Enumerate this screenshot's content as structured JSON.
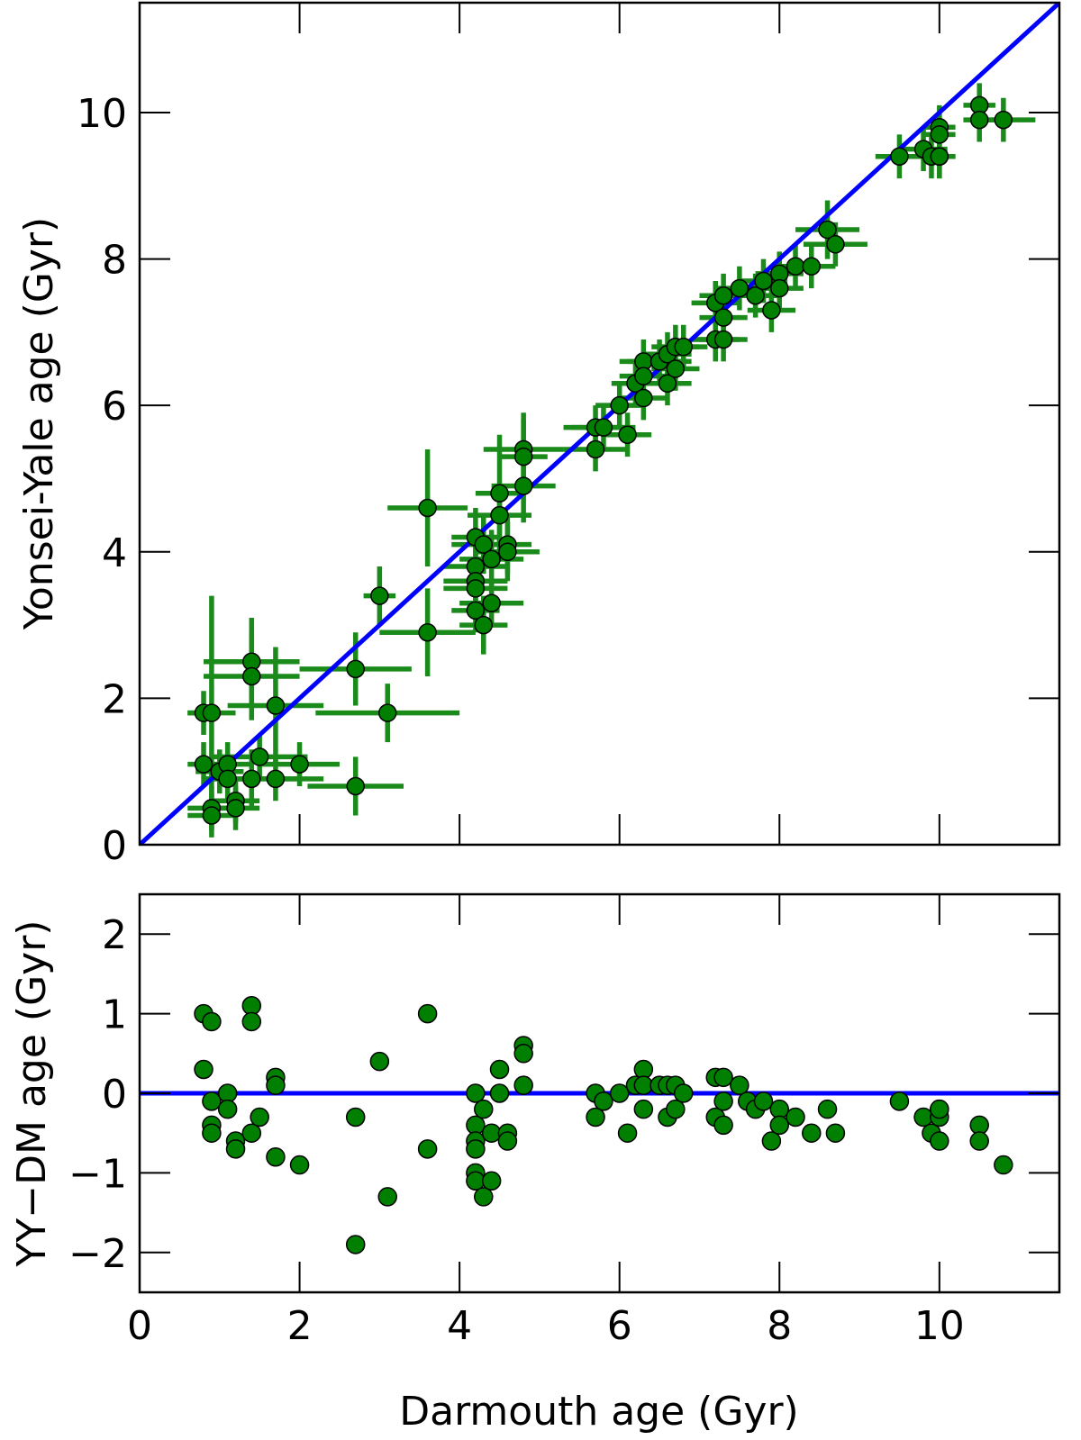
{
  "chart_data": [
    {
      "type": "scatter",
      "panel": "top",
      "title": "",
      "xlabel": "",
      "ylabel": "Yonsei-Yale age (Gyr)",
      "xlim": [
        0,
        11.5
      ],
      "ylim": [
        0,
        11.5
      ],
      "xticks": [
        0,
        2,
        4,
        6,
        8,
        10
      ],
      "xtick_labels_visible": false,
      "yticks": [
        0,
        2,
        4,
        6,
        8,
        10
      ],
      "ytick_labels": [
        "0",
        "2",
        "4",
        "6",
        "8",
        "10"
      ],
      "grid": false,
      "colors": {
        "points": "#007f00",
        "errorbars": "#1a8a1a",
        "line": "#0000ff",
        "edge": "#000000"
      },
      "reference_line": {
        "name": "one-to-one",
        "x": [
          0,
          11.5
        ],
        "y": [
          0,
          11.5
        ]
      },
      "series": [
        {
          "name": "stars",
          "x": [
            0.8,
            0.8,
            0.9,
            0.9,
            0.9,
            1.0,
            1.1,
            1.1,
            1.2,
            1.2,
            1.4,
            1.4,
            1.4,
            1.5,
            1.7,
            1.7,
            2.0,
            2.7,
            2.7,
            3.0,
            3.1,
            3.6,
            3.6,
            4.2,
            4.2,
            4.2,
            4.2,
            4.2,
            4.3,
            4.3,
            4.4,
            4.4,
            4.5,
            4.5,
            4.6,
            4.6,
            4.8,
            4.8,
            4.8,
            5.7,
            5.7,
            5.8,
            6.0,
            6.1,
            6.2,
            6.3,
            6.3,
            6.3,
            6.5,
            6.6,
            6.6,
            6.7,
            6.7,
            6.8,
            7.2,
            7.2,
            7.3,
            7.3,
            7.3,
            7.5,
            7.7,
            7.8,
            7.9,
            8.0,
            8.0,
            8.2,
            8.4,
            8.6,
            8.7,
            9.5,
            9.8,
            9.9,
            10.0,
            10.0,
            10.0,
            10.0,
            10.5,
            10.5,
            10.8
          ],
          "y": [
            1.8,
            1.1,
            1.8,
            0.5,
            0.4,
            1.0,
            1.1,
            0.9,
            0.6,
            0.5,
            2.5,
            2.3,
            0.9,
            1.2,
            1.9,
            0.9,
            1.1,
            2.4,
            0.8,
            3.4,
            1.8,
            4.6,
            2.9,
            3.8,
            3.6,
            3.5,
            3.2,
            4.2,
            4.1,
            3.0,
            3.9,
            3.3,
            4.8,
            4.5,
            4.1,
            4.0,
            5.4,
            5.3,
            4.9,
            5.7,
            5.4,
            5.7,
            6.0,
            5.6,
            6.3,
            6.6,
            6.4,
            6.1,
            6.6,
            6.3,
            6.7,
            6.8,
            6.5,
            6.8,
            7.4,
            6.9,
            7.5,
            7.2,
            6.9,
            7.6,
            7.5,
            7.7,
            7.3,
            7.8,
            7.6,
            7.9,
            7.9,
            8.4,
            8.2,
            9.4,
            9.5,
            9.4,
            9.8,
            9.7,
            9.4,
            9.4,
            10.1,
            9.9,
            9.9
          ],
          "xerr": [
            0.2,
            0.2,
            0.3,
            0.3,
            0.3,
            0.3,
            0.3,
            0.3,
            0.3,
            0.3,
            0.6,
            0.6,
            0.6,
            0.6,
            0.6,
            0.6,
            0.5,
            0.7,
            0.6,
            0.2,
            0.9,
            0.5,
            0.6,
            0.4,
            0.4,
            0.4,
            0.3,
            0.3,
            0.4,
            0.3,
            0.4,
            0.4,
            0.3,
            0.4,
            0.3,
            0.4,
            0.5,
            0.3,
            0.4,
            0.4,
            0.4,
            0.4,
            0.3,
            0.3,
            0.3,
            0.3,
            0.3,
            0.3,
            0.4,
            0.3,
            0.3,
            0.3,
            0.3,
            0.3,
            0.3,
            0.3,
            0.3,
            0.3,
            0.3,
            0.3,
            0.3,
            0.3,
            0.3,
            0.3,
            0.3,
            0.3,
            0.3,
            0.4,
            0.4,
            0.3,
            0.3,
            0.2,
            0.2,
            0.2,
            0.2,
            0.2,
            0.2,
            0.2,
            0.4
          ],
          "yerr": [
            0.3,
            0.3,
            1.6,
            0.3,
            0.3,
            0.3,
            0.3,
            0.3,
            0.3,
            0.3,
            0.6,
            0.6,
            0.4,
            0.3,
            0.8,
            0.3,
            0.3,
            0.5,
            0.4,
            0.4,
            0.4,
            0.8,
            0.6,
            0.4,
            0.4,
            0.4,
            0.3,
            0.4,
            0.4,
            0.4,
            0.4,
            0.3,
            0.8,
            0.4,
            0.4,
            0.4,
            0.5,
            0.5,
            0.5,
            0.3,
            0.3,
            0.3,
            0.3,
            0.3,
            0.3,
            0.3,
            0.3,
            0.3,
            0.3,
            0.3,
            0.3,
            0.3,
            0.3,
            0.3,
            0.3,
            0.3,
            0.3,
            0.3,
            0.3,
            0.3,
            0.3,
            0.3,
            0.3,
            0.3,
            0.3,
            0.3,
            0.3,
            0.4,
            0.3,
            0.3,
            0.3,
            0.3,
            0.3,
            0.3,
            0.3,
            0.3,
            0.3,
            0.3,
            0.3
          ]
        }
      ]
    },
    {
      "type": "scatter",
      "panel": "bottom",
      "title": "",
      "xlabel": "Darmouth age (Gyr)",
      "ylabel": "YY−DM age (Gyr)",
      "xlim": [
        0,
        11.5
      ],
      "ylim": [
        -2.5,
        2.5
      ],
      "xticks": [
        0,
        2,
        4,
        6,
        8,
        10
      ],
      "xtick_labels": [
        "0",
        "2",
        "4",
        "6",
        "8",
        "10"
      ],
      "yticks": [
        -2,
        -1,
        0,
        1,
        2
      ],
      "ytick_labels": [
        "−2",
        "−1",
        "0",
        "1",
        "2"
      ],
      "grid": false,
      "colors": {
        "points": "#007f00",
        "line": "#0000ff",
        "edge": "#000000"
      },
      "reference_line": {
        "name": "zero",
        "x": [
          0,
          11.5
        ],
        "y": [
          0,
          0
        ]
      },
      "series": [
        {
          "name": "residuals",
          "x": [
            0.8,
            0.8,
            0.9,
            0.9,
            0.9,
            0.9,
            1.1,
            1.1,
            1.2,
            1.2,
            1.4,
            1.4,
            1.4,
            1.5,
            1.7,
            1.7,
            1.7,
            2.0,
            2.7,
            2.7,
            3.0,
            3.1,
            3.6,
            3.6,
            4.2,
            4.2,
            4.2,
            4.2,
            4.2,
            4.2,
            4.3,
            4.3,
            4.4,
            4.4,
            4.5,
            4.5,
            4.6,
            4.6,
            4.8,
            4.8,
            4.8,
            5.7,
            5.7,
            5.8,
            6.0,
            6.1,
            6.2,
            6.3,
            6.3,
            6.3,
            6.5,
            6.6,
            6.6,
            6.7,
            6.7,
            6.8,
            7.2,
            7.2,
            7.3,
            7.3,
            7.3,
            7.5,
            7.6,
            7.7,
            7.8,
            7.9,
            8.0,
            8.0,
            8.2,
            8.4,
            8.6,
            8.7,
            9.5,
            9.8,
            9.9,
            10.0,
            10.0,
            10.0,
            10.0,
            10.5,
            10.5,
            10.8
          ],
          "y": [
            1.0,
            0.3,
            0.9,
            -0.1,
            -0.4,
            -0.5,
            0.0,
            -0.2,
            -0.6,
            -0.7,
            1.1,
            0.9,
            -0.5,
            -0.3,
            0.2,
            0.1,
            -0.8,
            -0.9,
            -0.3,
            -1.9,
            0.4,
            -1.3,
            1.0,
            -0.7,
            0.0,
            -0.4,
            -0.6,
            -0.7,
            -1.0,
            -1.1,
            -0.2,
            -1.3,
            -0.5,
            -1.1,
            0.3,
            0.0,
            -0.5,
            -0.6,
            0.6,
            0.5,
            0.1,
            0.0,
            -0.3,
            -0.1,
            0.0,
            -0.5,
            0.1,
            0.3,
            0.1,
            -0.2,
            0.1,
            0.1,
            -0.3,
            0.1,
            -0.2,
            0.0,
            0.2,
            -0.3,
            0.2,
            -0.1,
            -0.4,
            0.1,
            -0.1,
            -0.2,
            -0.1,
            -0.6,
            -0.2,
            -0.4,
            -0.3,
            -0.5,
            -0.2,
            -0.5,
            -0.1,
            -0.3,
            -0.5,
            -0.2,
            -0.3,
            -0.6,
            -0.2,
            -0.4,
            -0.6,
            -0.9
          ]
        }
      ]
    }
  ]
}
